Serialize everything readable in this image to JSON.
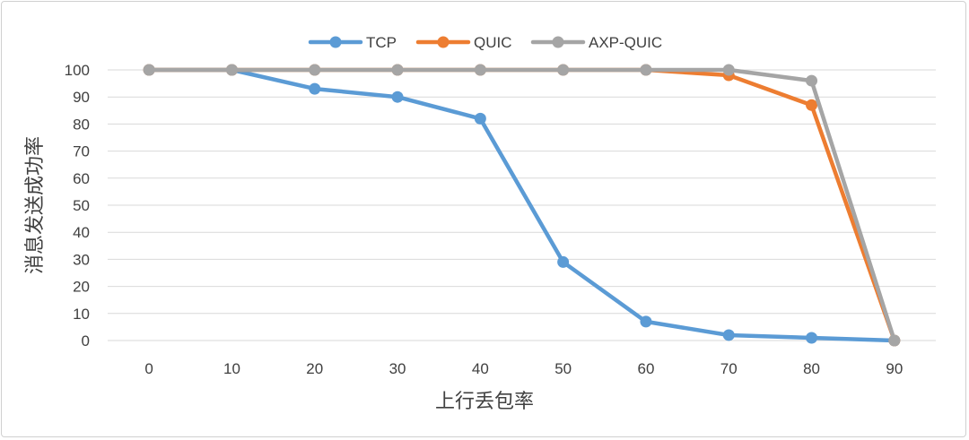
{
  "chart_data": {
    "type": "line",
    "title": "",
    "xlabel": "上行丢包率",
    "ylabel": "消息发送成功率",
    "x": [
      0,
      10,
      20,
      30,
      40,
      50,
      60,
      70,
      80,
      90
    ],
    "ylim": [
      0,
      100
    ],
    "yticks": [
      0,
      10,
      20,
      30,
      40,
      50,
      60,
      70,
      80,
      90,
      100
    ],
    "grid": true,
    "legend_position": "top",
    "series": [
      {
        "name": "TCP",
        "color": "#5b9bd5",
        "values": [
          100,
          100,
          93,
          90,
          82,
          29,
          7,
          2,
          1,
          0
        ]
      },
      {
        "name": "QUIC",
        "color": "#ed7d31",
        "values": [
          100,
          100,
          100,
          100,
          100,
          100,
          100,
          98,
          87,
          0
        ]
      },
      {
        "name": "AXP-QUIC",
        "color": "#a5a5a5",
        "values": [
          100,
          100,
          100,
          100,
          100,
          100,
          100,
          100,
          96,
          0
        ]
      }
    ]
  }
}
